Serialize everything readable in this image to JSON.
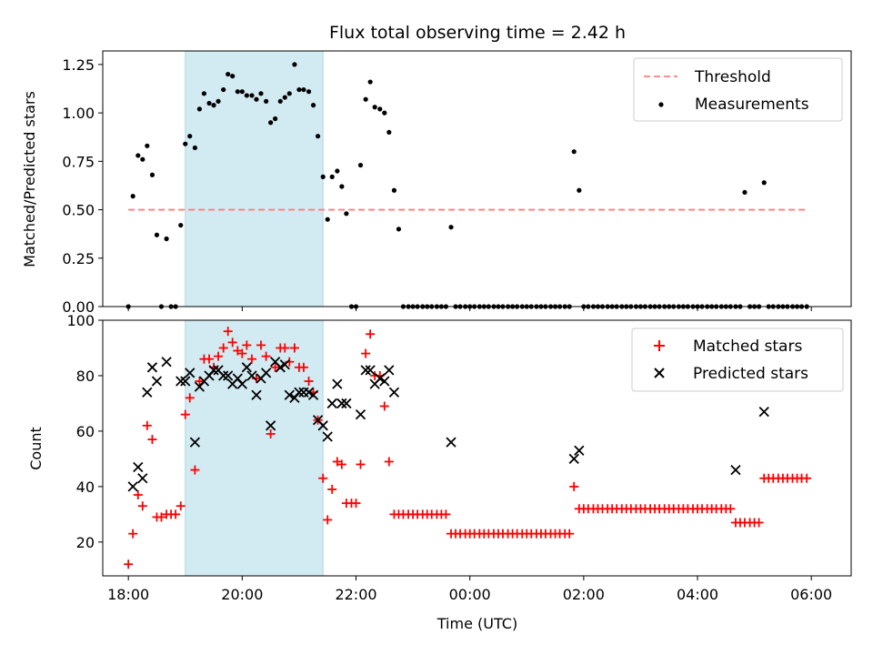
{
  "chart_data": [
    {
      "type": "scatter",
      "title": "Flux total observing time = 2.42 h",
      "xlabel": "",
      "ylabel": "Matched/Predicted stars",
      "xlim": [
        17.55,
        30.7
      ],
      "ylim": [
        0,
        1.32
      ],
      "yticks": [
        0.0,
        0.25,
        0.5,
        0.75,
        1.0,
        1.25
      ],
      "ytick_labels": [
        "0.00",
        "0.25",
        "0.50",
        "0.75",
        "1.00",
        "1.25"
      ],
      "shaded_span": {
        "x0": 19.0,
        "x1": 21.42,
        "color": "#add8e6"
      },
      "legend": {
        "placement": "top-right",
        "entries": [
          "Threshold",
          "Measurements"
        ]
      },
      "threshold": {
        "name": "Threshold",
        "x": [
          18.0,
          29.95
        ],
        "y": 0.5,
        "color": "#ff7f7f"
      },
      "series": [
        {
          "name": "Measurements",
          "color": "#000000",
          "x": [
            18.0,
            18.08,
            18.17,
            18.25,
            18.33,
            18.42,
            18.5,
            18.58,
            18.67,
            18.75,
            18.83,
            18.92,
            19.0,
            19.08,
            19.17,
            19.25,
            19.33,
            19.42,
            19.5,
            19.58,
            19.67,
            19.75,
            19.83,
            19.92,
            20.0,
            20.08,
            20.17,
            20.25,
            20.33,
            20.42,
            20.5,
            20.58,
            20.67,
            20.75,
            20.83,
            20.92,
            21.0,
            21.08,
            21.17,
            21.25,
            21.33,
            21.42,
            21.5,
            21.58,
            21.67,
            21.75,
            21.83,
            21.92,
            22.0,
            22.08,
            22.17,
            22.25,
            22.33,
            22.42,
            22.5,
            22.58,
            22.67,
            22.75,
            22.83,
            22.92,
            23.0,
            23.08,
            23.17,
            23.25,
            23.33,
            23.42,
            23.5,
            23.58,
            23.67,
            23.75,
            23.83,
            23.92,
            24.0,
            24.08,
            24.17,
            24.25,
            24.33,
            24.42,
            24.5,
            24.58,
            24.67,
            24.75,
            24.83,
            24.92,
            25.0,
            25.08,
            25.17,
            25.25,
            25.33,
            25.42,
            25.5,
            25.58,
            25.67,
            25.75,
            25.83,
            25.92,
            26.0,
            26.08,
            26.17,
            26.25,
            26.33,
            26.42,
            26.5,
            26.58,
            26.67,
            26.75,
            26.83,
            26.92,
            27.0,
            27.08,
            27.17,
            27.25,
            27.33,
            27.42,
            27.5,
            27.58,
            27.67,
            27.75,
            27.83,
            27.92,
            28.0,
            28.08,
            28.17,
            28.25,
            28.33,
            28.42,
            28.5,
            28.58,
            28.67,
            28.75,
            28.83,
            28.92,
            29.0,
            29.08,
            29.17,
            29.25,
            29.33,
            29.42,
            29.5,
            29.58,
            29.67,
            29.75,
            29.83,
            29.92
          ],
          "y": [
            0,
            0.57,
            0.78,
            0.76,
            0.83,
            0.68,
            0.37,
            0,
            0.35,
            0,
            0,
            0.42,
            0.84,
            0.88,
            0.82,
            1.02,
            1.1,
            1.05,
            1.04,
            1.06,
            1.12,
            1.2,
            1.19,
            1.11,
            1.11,
            1.09,
            1.09,
            1.07,
            1.1,
            1.06,
            0.95,
            0.97,
            1.06,
            1.08,
            1.1,
            1.25,
            1.12,
            1.12,
            1.11,
            1.04,
            0.88,
            0.67,
            0.45,
            0.67,
            0.7,
            0.62,
            0.48,
            0,
            0,
            0.73,
            1.07,
            1.16,
            1.03,
            1.02,
            1.0,
            0.9,
            0.6,
            0.4,
            0,
            0,
            0,
            0,
            0,
            0,
            0,
            0,
            0,
            0,
            0.41,
            0,
            0,
            0,
            0,
            0,
            0,
            0,
            0,
            0,
            0,
            0,
            0,
            0,
            0,
            0,
            0,
            0,
            0,
            0,
            0,
            0,
            0,
            0,
            0,
            0,
            0.8,
            0.6,
            0,
            0,
            0,
            0,
            0,
            0,
            0,
            0,
            0,
            0,
            0,
            0,
            0,
            0,
            0,
            0,
            0,
            0,
            0,
            0,
            0,
            0,
            0,
            0,
            0,
            0,
            0,
            0,
            0,
            0,
            0,
            0,
            0,
            0,
            0.59,
            0,
            0,
            0,
            0.64,
            0,
            0,
            0,
            0,
            0,
            0,
            0,
            0,
            0
          ]
        }
      ]
    },
    {
      "type": "scatter",
      "title": "",
      "xlabel": "Time (UTC)",
      "ylabel": "Count",
      "xlim": [
        17.55,
        30.7
      ],
      "ylim": [
        7.8,
        100
      ],
      "yticks": [
        20,
        40,
        60,
        80,
        100
      ],
      "ytick_labels": [
        "20",
        "40",
        "60",
        "80",
        "100"
      ],
      "xticks": [
        18,
        20,
        22,
        24,
        26,
        28,
        30
      ],
      "xtick_labels": [
        "18:00",
        "20:00",
        "22:00",
        "00:00",
        "02:00",
        "04:00",
        "06:00"
      ],
      "shaded_span": {
        "x0": 19.0,
        "x1": 21.42,
        "color": "#add8e6"
      },
      "legend": {
        "placement": "top-right",
        "entries": [
          "Matched stars",
          "Predicted stars"
        ]
      },
      "series": [
        {
          "name": "Matched stars",
          "marker": "+",
          "color": "#ff0000",
          "x": [
            18.0,
            18.08,
            18.17,
            18.25,
            18.33,
            18.42,
            18.5,
            18.58,
            18.67,
            18.75,
            18.83,
            18.92,
            19.0,
            19.08,
            19.17,
            19.25,
            19.33,
            19.42,
            19.5,
            19.58,
            19.67,
            19.75,
            19.83,
            19.92,
            20.0,
            20.08,
            20.17,
            20.25,
            20.33,
            20.42,
            20.5,
            20.58,
            20.67,
            20.75,
            20.83,
            20.92,
            21.0,
            21.08,
            21.17,
            21.25,
            21.33,
            21.42,
            21.5,
            21.58,
            21.67,
            21.75,
            21.83,
            21.92,
            22.0,
            22.08,
            22.17,
            22.25,
            22.33,
            22.42,
            22.5,
            22.58,
            22.67,
            22.75,
            22.83,
            22.92,
            23.0,
            23.08,
            23.17,
            23.25,
            23.33,
            23.42,
            23.5,
            23.58,
            23.67,
            23.75,
            23.83,
            23.92,
            24.0,
            24.08,
            24.17,
            24.25,
            24.33,
            24.42,
            24.5,
            24.58,
            24.67,
            24.75,
            24.83,
            24.92,
            25.0,
            25.08,
            25.17,
            25.25,
            25.33,
            25.42,
            25.5,
            25.58,
            25.67,
            25.75,
            25.83,
            25.92,
            26.0,
            26.08,
            26.17,
            26.25,
            26.33,
            26.42,
            26.5,
            26.58,
            26.67,
            26.75,
            26.83,
            26.92,
            27.0,
            27.08,
            27.17,
            27.25,
            27.33,
            27.42,
            27.5,
            27.58,
            27.67,
            27.75,
            27.83,
            27.92,
            28.0,
            28.08,
            28.17,
            28.25,
            28.33,
            28.42,
            28.5,
            28.58,
            28.67,
            28.75,
            28.83,
            28.92,
            29.0,
            29.08,
            29.17,
            29.25,
            29.33,
            29.42,
            29.5,
            29.58,
            29.67,
            29.75,
            29.83,
            29.92
          ],
          "y": [
            12,
            23,
            37,
            33,
            62,
            57,
            29,
            29,
            30,
            30,
            30,
            33,
            66,
            72,
            46,
            78,
            86,
            86,
            83,
            87,
            90,
            96,
            92,
            89,
            88,
            91,
            86,
            79,
            91,
            87,
            59,
            83,
            90,
            90,
            85,
            90,
            83,
            83,
            78,
            74,
            64,
            43,
            28,
            39,
            49,
            48,
            34,
            34,
            34,
            48,
            88,
            95,
            80,
            80,
            69,
            49,
            30,
            30,
            30,
            30,
            30,
            30,
            30,
            30,
            30,
            30,
            30,
            30,
            23,
            23,
            23,
            23,
            23,
            23,
            23,
            23,
            23,
            23,
            23,
            23,
            23,
            23,
            23,
            23,
            23,
            23,
            23,
            23,
            23,
            23,
            23,
            23,
            23,
            23,
            40,
            32,
            32,
            32,
            32,
            32,
            32,
            32,
            32,
            32,
            32,
            32,
            32,
            32,
            32,
            32,
            32,
            32,
            32,
            32,
            32,
            32,
            32,
            32,
            32,
            32,
            32,
            32,
            32,
            32,
            32,
            32,
            32,
            32,
            27,
            27,
            27,
            27,
            27,
            27,
            43,
            43,
            43,
            43,
            43,
            43,
            43,
            43,
            43,
            43
          ]
        },
        {
          "name": "Predicted stars",
          "marker": "x",
          "color": "#000000",
          "x": [
            18.08,
            18.17,
            18.25,
            18.33,
            18.42,
            18.5,
            18.67,
            18.92,
            19.0,
            19.08,
            19.17,
            19.25,
            19.33,
            19.42,
            19.5,
            19.58,
            19.67,
            19.75,
            19.83,
            19.92,
            20.0,
            20.08,
            20.17,
            20.25,
            20.33,
            20.42,
            20.5,
            20.58,
            20.67,
            20.75,
            20.83,
            20.92,
            21.0,
            21.08,
            21.17,
            21.25,
            21.33,
            21.42,
            21.5,
            21.58,
            21.67,
            21.75,
            21.83,
            22.08,
            22.17,
            22.25,
            22.33,
            22.42,
            22.5,
            22.58,
            22.67,
            23.67,
            25.83,
            25.92,
            28.67,
            29.17
          ],
          "y": [
            40,
            47,
            43,
            74,
            83,
            78,
            85,
            78,
            78,
            81,
            56,
            76,
            78,
            80,
            82,
            82,
            80,
            80,
            77,
            79,
            77,
            83,
            80,
            73,
            79,
            81,
            62,
            85,
            83,
            84,
            73,
            72,
            74,
            74,
            74,
            73,
            64,
            62,
            58,
            70,
            77,
            70,
            70,
            66,
            82,
            82,
            77,
            79,
            78,
            82,
            74,
            56,
            50,
            53,
            46,
            67
          ]
        }
      ]
    }
  ]
}
